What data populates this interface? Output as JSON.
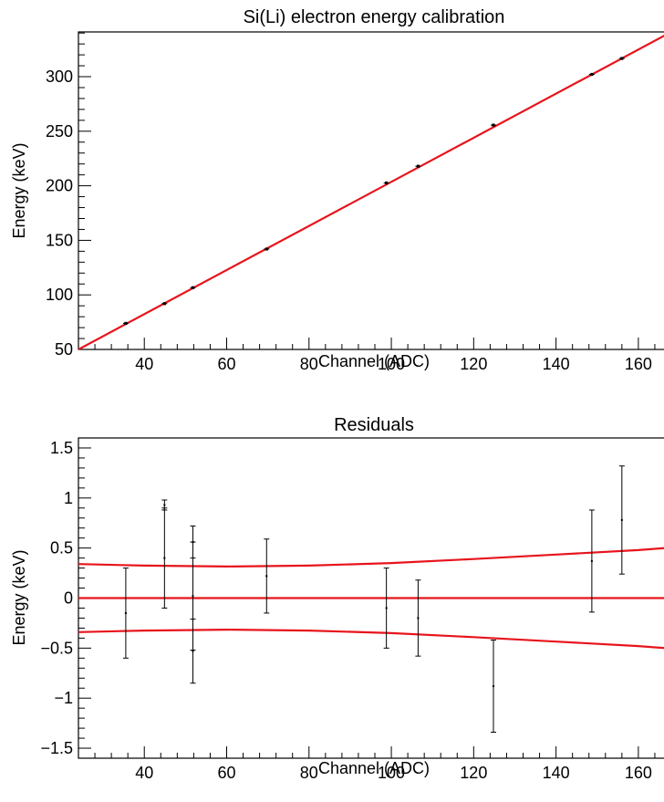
{
  "chart_data": [
    {
      "type": "scatter",
      "title": "Si(Li) electron energy calibration",
      "xlabel": "Channel (ADC)",
      "ylabel": "Energy (keV)",
      "xlim": [
        24,
        168
      ],
      "ylim": [
        50,
        341
      ],
      "x_ticks": [
        40,
        60,
        80,
        100,
        120,
        140,
        160
      ],
      "y_ticks": [
        50,
        100,
        150,
        200,
        250,
        300
      ],
      "grid": false,
      "points": [
        {
          "x": 35.5,
          "y": 73.9
        },
        {
          "x": 44.9,
          "y": 92.0
        },
        {
          "x": 51.8,
          "y": 106.6
        },
        {
          "x": 69.7,
          "y": 142.0
        },
        {
          "x": 98.8,
          "y": 202.6
        },
        {
          "x": 106.5,
          "y": 217.9
        },
        {
          "x": 124.8,
          "y": 255.6
        },
        {
          "x": 148.7,
          "y": 302.1
        },
        {
          "x": 156.0,
          "y": 316.7
        }
      ],
      "fit_line": {
        "x": [
          24,
          168
        ],
        "y": [
          50,
          341
        ],
        "color": "#e8141c"
      }
    },
    {
      "type": "scatter",
      "title": "Residuals",
      "xlabel": "Channel (ADC)",
      "ylabel": "Energy (keV)",
      "xlim": [
        24,
        168
      ],
      "ylim": [
        -1.6,
        1.6
      ],
      "x_ticks": [
        40,
        60,
        80,
        100,
        120,
        140,
        160
      ],
      "y_ticks": [
        -1.5,
        -1,
        -0.5,
        0,
        0.5,
        1,
        1.5
      ],
      "y_tick_labels": [
        "−1.5",
        "−1",
        "−0.5",
        "0",
        "0.5",
        "1",
        "1.5"
      ],
      "grid": false,
      "points": [
        {
          "x": 35.5,
          "y": -0.15,
          "err": 0.45
        },
        {
          "x": 44.9,
          "y": 0.93,
          "err": 0.05
        },
        {
          "x": 44.9,
          "y": 0.4,
          "err": 0.5
        },
        {
          "x": 51.8,
          "y": 0.56,
          "err": 0.16
        },
        {
          "x": 51.8,
          "y": 0.02,
          "err": 0.54
        },
        {
          "x": 51.8,
          "y": -0.53,
          "err": 0.32
        },
        {
          "x": 69.7,
          "y": 0.22,
          "err": 0.37
        },
        {
          "x": 98.8,
          "y": -0.1,
          "err": 0.4
        },
        {
          "x": 106.5,
          "y": -0.2,
          "err": 0.38
        },
        {
          "x": 124.8,
          "y": -0.88,
          "err": 0.46
        },
        {
          "x": 148.7,
          "y": 0.37,
          "err": 0.51
        },
        {
          "x": 156.0,
          "y": 0.78,
          "err": 0.54
        }
      ],
      "zero_line": {
        "y": 0,
        "color": "#e8141c"
      },
      "confidence_band": {
        "x": [
          24,
          40,
          60,
          80,
          100,
          120,
          140,
          160,
          168
        ],
        "upper": [
          0.34,
          0.325,
          0.315,
          0.325,
          0.35,
          0.39,
          0.435,
          0.48,
          0.505
        ],
        "lower": [
          -0.34,
          -0.325,
          -0.315,
          -0.325,
          -0.35,
          -0.39,
          -0.435,
          -0.48,
          -0.505
        ],
        "color": "#e8141c"
      }
    }
  ]
}
